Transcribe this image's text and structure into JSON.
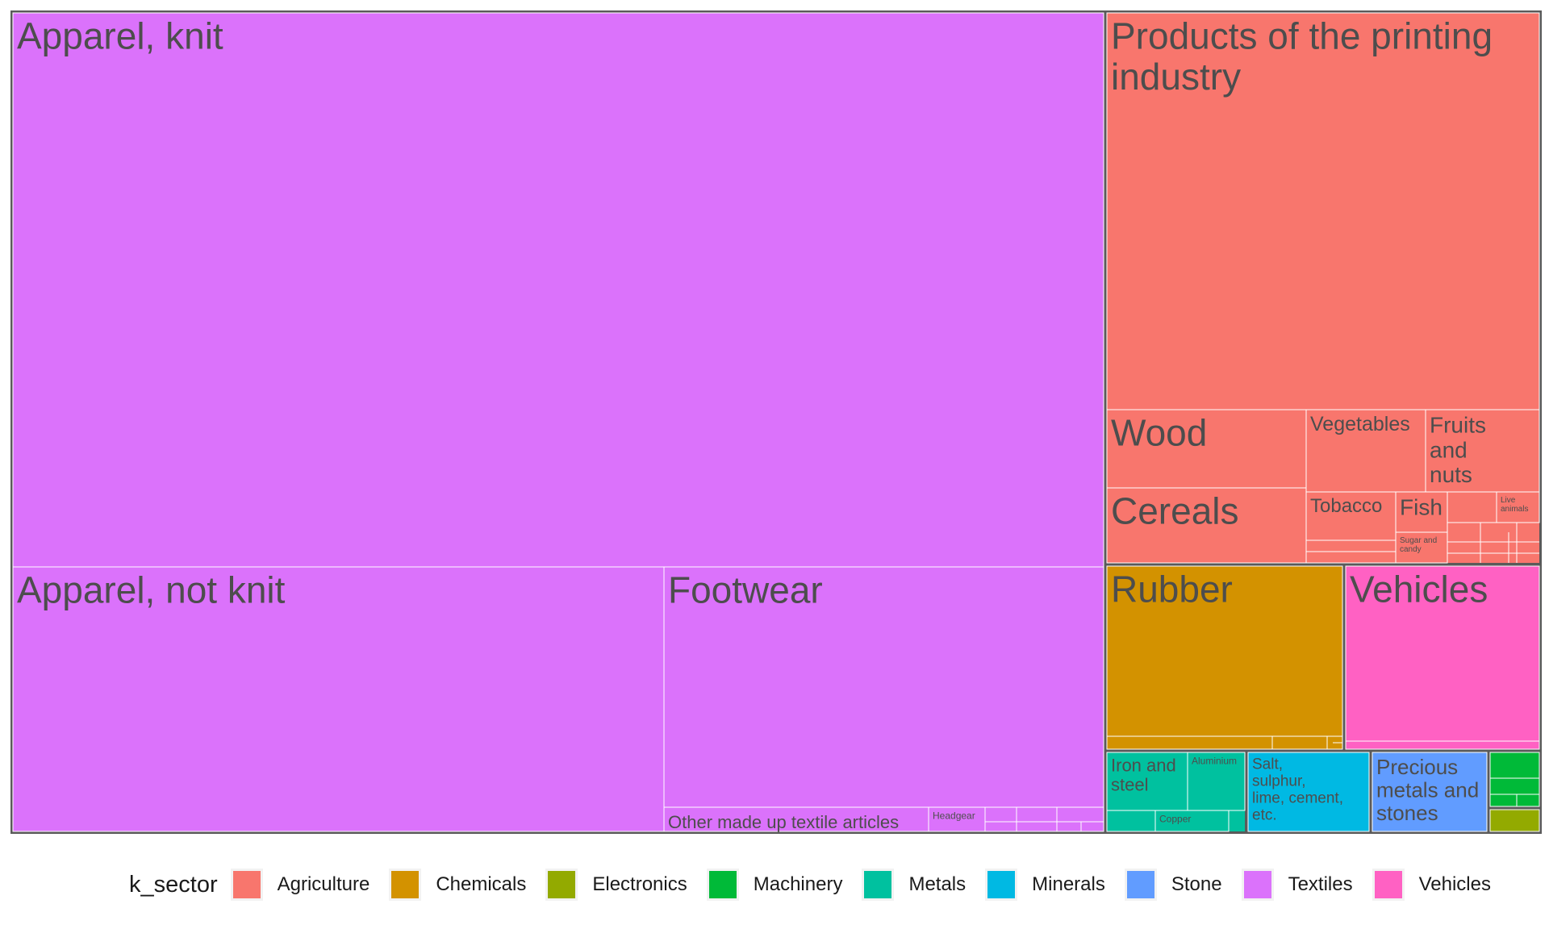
{
  "chart_data": {
    "type": "treemap",
    "legend_title": "k_sector",
    "legend_position": "bottom",
    "sectors": [
      {
        "name": "Agriculture",
        "color": "#F8766D"
      },
      {
        "name": "Chemicals",
        "color": "#D39200"
      },
      {
        "name": "Electronics",
        "color": "#93AA00"
      },
      {
        "name": "Machinery",
        "color": "#00BA38"
      },
      {
        "name": "Metals",
        "color": "#00C19F"
      },
      {
        "name": "Minerals",
        "color": "#00B9E3"
      },
      {
        "name": "Stone",
        "color": "#619CFF"
      },
      {
        "name": "Textiles",
        "color": "#DB72FB"
      },
      {
        "name": "Vehicles",
        "color": "#FF61C3"
      }
    ],
    "groups": [
      {
        "sector": "Textiles",
        "share": 70.8,
        "items": [
          {
            "label": "Apparel, knit",
            "share": 47.5
          },
          {
            "label": "Apparel, not knit",
            "share": 12.6
          },
          {
            "label": "Footwear",
            "share": 8.5
          },
          {
            "label": "Other made up textile articles",
            "share": 1.0
          },
          {
            "label": "Headgear",
            "share": 0.2
          },
          {
            "label": "",
            "share": 1.0
          }
        ]
      },
      {
        "sector": "Agriculture",
        "share": 17.9,
        "items": [
          {
            "label": "Products of the printing industry",
            "share": 12.2
          },
          {
            "label": "Wood",
            "share": 1.6
          },
          {
            "label": "Cereals",
            "share": 1.5
          },
          {
            "label": "Vegetables",
            "share": 0.8
          },
          {
            "label": "Fruits and nuts",
            "share": 0.7
          },
          {
            "label": "Tobacco",
            "share": 0.4
          },
          {
            "label": "Fish",
            "share": 0.25
          },
          {
            "label": "Sugar and candy",
            "share": 0.15
          },
          {
            "label": "Live animals",
            "share": 0.1
          },
          {
            "label": "",
            "share": 0.2
          }
        ]
      },
      {
        "sector": "Chemicals",
        "share": 4.7,
        "items": [
          {
            "label": "Rubber",
            "share": 4.4
          },
          {
            "label": "",
            "share": 0.3
          }
        ]
      },
      {
        "sector": "Vehicles",
        "share": 3.0,
        "items": [
          {
            "label": "Vehicles",
            "share": 2.9
          },
          {
            "label": "",
            "share": 0.1
          }
        ]
      },
      {
        "sector": "Metals",
        "share": 1.4,
        "items": [
          {
            "label": "Iron and steel",
            "share": 0.7
          },
          {
            "label": "Aluminium",
            "share": 0.45
          },
          {
            "label": "Copper",
            "share": 0.15
          },
          {
            "label": "",
            "share": 0.1
          }
        ]
      },
      {
        "sector": "Minerals",
        "share": 1.0,
        "items": [
          {
            "label": "Salt, sulphur, lime, cement, etc.",
            "share": 1.0
          }
        ]
      },
      {
        "sector": "Stone",
        "share": 1.0,
        "items": [
          {
            "label": "Precious metals and stones",
            "share": 1.0
          }
        ]
      },
      {
        "sector": "Machinery",
        "share": 0.3,
        "items": [
          {
            "label": "",
            "share": 0.3
          }
        ]
      },
      {
        "sector": "Electronics",
        "share": 0.2,
        "items": [
          {
            "label": "",
            "share": 0.2
          }
        ]
      }
    ]
  }
}
